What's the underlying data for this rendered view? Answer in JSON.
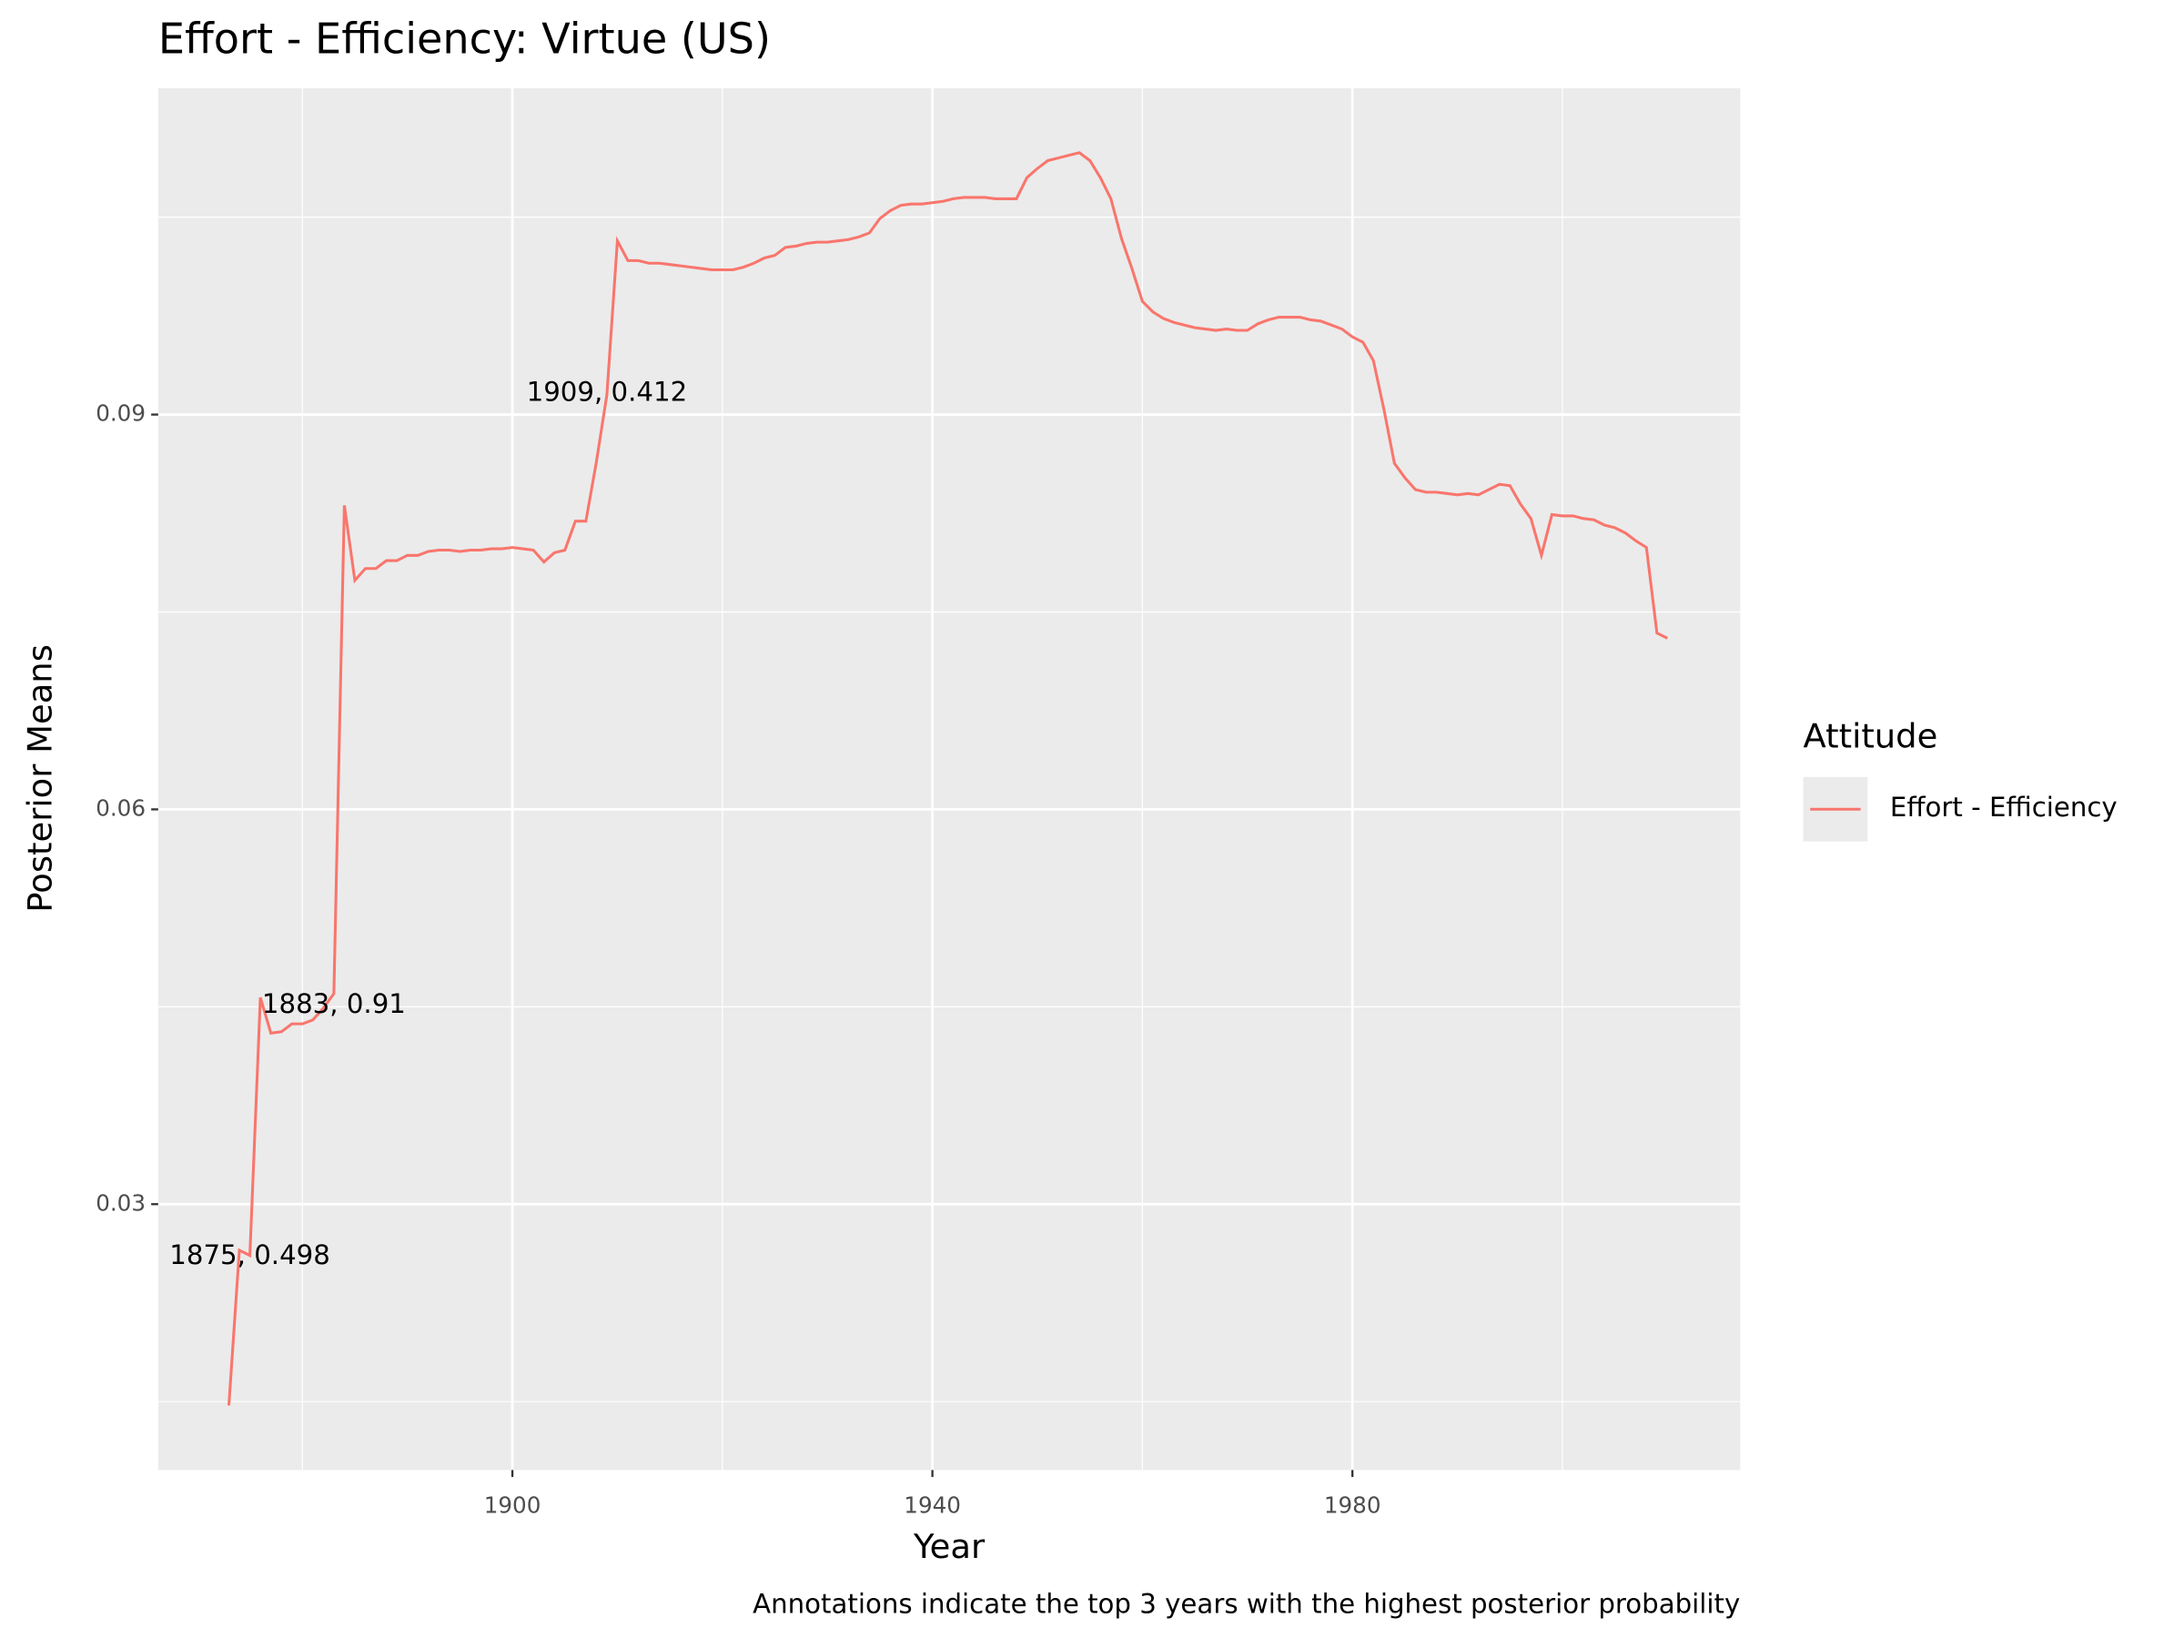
{
  "chart_data": {
    "type": "line",
    "title": "Effort - Efficiency: Virtue (US)",
    "x_label": "Year",
    "y_label": "Posterior Means",
    "caption": "Annotations indicate the top 3 years with the highest posterior probability",
    "legend_title": "Attitude",
    "legend_position": "right",
    "grid": true,
    "xlim": [
      1866.27,
      2016.93
    ],
    "ylim": [
      0.0098,
      0.1148
    ],
    "xticks": [
      1900,
      1940,
      1980
    ],
    "yticks": [
      0.03,
      0.06,
      0.09
    ],
    "x_minor_ticks": [
      1880,
      1920,
      1960,
      2000
    ],
    "y_minor_ticks": [
      0.015,
      0.045,
      0.075,
      0.105
    ],
    "x": [
      1873,
      1874,
      1875,
      1876,
      1877,
      1878,
      1879,
      1880,
      1881,
      1882,
      1883,
      1884,
      1885,
      1886,
      1887,
      1888,
      1889,
      1890,
      1891,
      1892,
      1893,
      1894,
      1895,
      1896,
      1897,
      1898,
      1899,
      1900,
      1901,
      1902,
      1903,
      1904,
      1905,
      1906,
      1907,
      1908,
      1909,
      1910,
      1911,
      1912,
      1913,
      1914,
      1915,
      1916,
      1917,
      1918,
      1919,
      1920,
      1921,
      1922,
      1923,
      1924,
      1925,
      1926,
      1927,
      1928,
      1929,
      1930,
      1931,
      1932,
      1933,
      1934,
      1935,
      1936,
      1937,
      1938,
      1939,
      1940,
      1941,
      1942,
      1943,
      1944,
      1945,
      1946,
      1947,
      1948,
      1949,
      1950,
      1951,
      1952,
      1953,
      1954,
      1955,
      1956,
      1957,
      1958,
      1959,
      1960,
      1961,
      1962,
      1963,
      1964,
      1965,
      1966,
      1967,
      1968,
      1969,
      1970,
      1971,
      1972,
      1973,
      1974,
      1975,
      1976,
      1977,
      1978,
      1979,
      1980,
      1981,
      1982,
      1983,
      1984,
      1985,
      1986,
      1987,
      1988,
      1989,
      1990,
      1991,
      1992,
      1993,
      1994,
      1995,
      1996,
      1997,
      1998,
      1999,
      2000,
      2001,
      2002,
      2003,
      2004,
      2005,
      2006,
      2007,
      2008,
      2009,
      2010
    ],
    "series": [
      {
        "name": "Effort - Efficiency",
        "color": "#F8766D",
        "values": [
          0.0147,
          0.0265,
          0.0261,
          0.0457,
          0.043,
          0.0431,
          0.0437,
          0.0437,
          0.044,
          0.0449,
          0.046,
          0.0831,
          0.0774,
          0.0783,
          0.0783,
          0.0789,
          0.0789,
          0.0793,
          0.0793,
          0.0796,
          0.0797,
          0.0797,
          0.0796,
          0.0797,
          0.0797,
          0.0798,
          0.0798,
          0.0799,
          0.0798,
          0.0797,
          0.0788,
          0.0795,
          0.0797,
          0.0819,
          0.0819,
          0.0864,
          0.0915,
          0.1032,
          0.1017,
          0.1017,
          0.1015,
          0.1015,
          0.1014,
          0.1013,
          0.1012,
          0.1011,
          0.101,
          0.101,
          0.101,
          0.1012,
          0.1015,
          0.1019,
          0.1021,
          0.1027,
          0.1028,
          0.103,
          0.1031,
          0.1031,
          0.1032,
          0.1033,
          0.1035,
          0.1038,
          0.1049,
          0.1055,
          0.1059,
          0.106,
          0.106,
          0.1061,
          0.1062,
          0.1064,
          0.1065,
          0.1065,
          0.1065,
          0.1064,
          0.1064,
          0.1064,
          0.108,
          0.1087,
          0.1093,
          0.1095,
          0.1097,
          0.1099,
          0.1093,
          0.108,
          0.1064,
          0.1034,
          0.1011,
          0.0986,
          0.0978,
          0.0973,
          0.097,
          0.0968,
          0.0966,
          0.0965,
          0.0964,
          0.0965,
          0.0964,
          0.0964,
          0.0969,
          0.0972,
          0.0974,
          0.0974,
          0.0974,
          0.0972,
          0.0971,
          0.0968,
          0.0965,
          0.0959,
          0.0955,
          0.0941,
          0.0904,
          0.0863,
          0.0852,
          0.0843,
          0.0841,
          0.0841,
          0.084,
          0.0839,
          0.084,
          0.0839,
          0.0843,
          0.0847,
          0.0846,
          0.0832,
          0.0821,
          0.0793,
          0.0824,
          0.0823,
          0.0823,
          0.0821,
          0.082,
          0.0816,
          0.0814,
          0.081,
          0.0804,
          0.0799,
          0.0734,
          0.073
        ]
      }
    ],
    "annotations": [
      {
        "text": "1875, 0.498",
        "x": 1875,
        "y": 0.026
      },
      {
        "text": "1883, 0.91",
        "x": 1883,
        "y": 0.0451
      },
      {
        "text": "1909, 0.412",
        "x": 1909,
        "y": 0.0916
      }
    ]
  }
}
